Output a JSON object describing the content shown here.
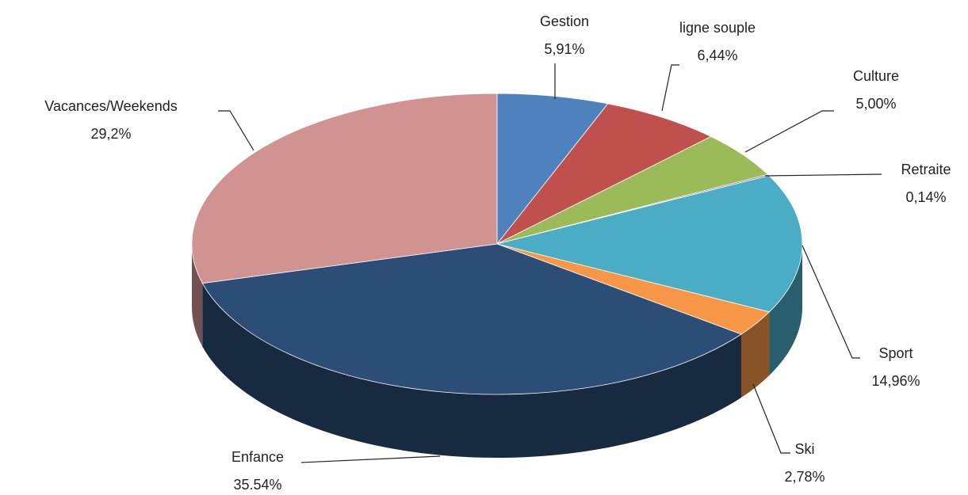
{
  "chart_data": {
    "type": "pie",
    "categories": [
      "Gestion",
      "ligne souple",
      "Culture",
      "Retraite",
      "Sport",
      "Ski",
      "Enfance",
      "Vacances/Weekends"
    ],
    "values": [
      5.91,
      6.44,
      5.0,
      0.14,
      14.96,
      2.78,
      35.54,
      29.2
    ],
    "value_labels": [
      "5,91%",
      "6,44%",
      "5,00%",
      "0,14%",
      "14,96%",
      "2,78%",
      "35.54%",
      "29,2%"
    ],
    "colors": [
      "#4f81bd",
      "#c0504d",
      "#9bbb59",
      "#8064a2",
      "#4bacc6",
      "#f79646",
      "#2c4d75",
      "#d19392"
    ]
  }
}
